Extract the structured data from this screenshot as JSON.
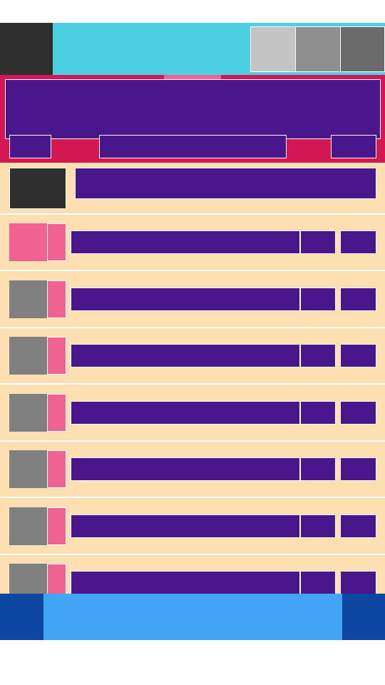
{
  "colors": {
    "app_bar": "#4dd0e1",
    "header": "#d21752",
    "content_block": "#4a168c",
    "list_background": "#fddfb1",
    "accent_pink": "#f06292",
    "bottom_bar": "#42a5f5",
    "bottom_bar_buttons": "#0d47a1"
  },
  "app_bar": {
    "nav_button_icon": "menu-icon",
    "actions": [
      "action-icon",
      "action-icon",
      "action-icon"
    ]
  },
  "header": {
    "title": "",
    "left_button_label": "",
    "field_value": "",
    "right_button_label": ""
  },
  "list": {
    "first_item": {
      "text": ""
    },
    "rows": [
      {
        "title": "",
        "value": "",
        "value2": ""
      },
      {
        "title": "",
        "value": "",
        "value2": ""
      },
      {
        "title": "",
        "value": "",
        "value2": ""
      },
      {
        "title": "",
        "value": "",
        "value2": ""
      },
      {
        "title": "",
        "value": "",
        "value2": ""
      },
      {
        "title": "",
        "value": "",
        "value2": ""
      },
      {
        "title": "",
        "value": "",
        "value2": ""
      }
    ]
  },
  "bottom_bar": {
    "title": "",
    "left_icon": "nav-left-icon",
    "right_icon": "nav-right-icon"
  }
}
